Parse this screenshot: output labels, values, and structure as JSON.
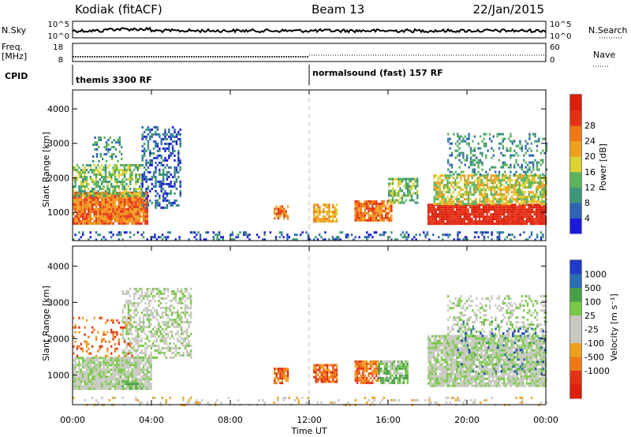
{
  "header": {
    "station": "Kodiak (fitACF)",
    "beam": "Beam 13",
    "date": "22/Jan/2015"
  },
  "panels": {
    "nsky": {
      "label": "N.Sky",
      "ticks": [
        "10^5",
        "10^0"
      ],
      "right_label": "N.Search",
      "right_ticks": [
        "10^5",
        "10^0"
      ]
    },
    "freq": {
      "label_line1": "Freq.",
      "label_line2": "[MHz]",
      "ticks": [
        "18",
        "8"
      ],
      "right_label": "Nave",
      "right_ticks": [
        "60",
        "0"
      ]
    },
    "cpid": {
      "label": "CPID",
      "modes": [
        {
          "name": "themis 3300 RF",
          "start_hour": 0
        },
        {
          "name": "normalsound (fast) 157 RF",
          "start_hour": 12
        }
      ]
    }
  },
  "chart_data": [
    {
      "type": "heatmap",
      "parameter": "Power",
      "ylabel": "Slant Range [km]",
      "ylim": [
        180,
        4550
      ],
      "yticks": [
        "1000",
        "2000",
        "3000",
        "4000"
      ],
      "colorbar_label": "Power [dB]",
      "colorbar_ticks": [
        "4",
        "8",
        "12",
        "16",
        "20",
        "24",
        "28"
      ],
      "colors": [
        "#1a1adc",
        "#2e64b4",
        "#3c9678",
        "#5ab45a",
        "#dcd232",
        "#f0a01e",
        "#f07814",
        "#e63214",
        "#dc1e0a"
      ],
      "blobs": [
        {
          "t0": 0.0,
          "t1": 3.8,
          "r0": 700,
          "r1": 1600,
          "level": 6,
          "density": 0.95
        },
        {
          "t0": 0.0,
          "t1": 3.5,
          "r0": 1500,
          "r1": 2400,
          "level": 3,
          "density": 0.6
        },
        {
          "t0": 1.0,
          "t1": 2.5,
          "r0": 2500,
          "r1": 3200,
          "level": 2,
          "density": 0.35
        },
        {
          "t0": 3.5,
          "t1": 5.5,
          "r0": 1100,
          "r1": 3500,
          "level": 1,
          "density": 0.45
        },
        {
          "t0": 10.2,
          "t1": 10.9,
          "r0": 800,
          "r1": 1200,
          "level": 6,
          "density": 0.8
        },
        {
          "t0": 12.2,
          "t1": 13.4,
          "r0": 750,
          "r1": 1250,
          "level": 5,
          "density": 0.8
        },
        {
          "t0": 14.3,
          "t1": 16.2,
          "r0": 800,
          "r1": 1350,
          "level": 6,
          "density": 0.85
        },
        {
          "t0": 16.0,
          "t1": 17.5,
          "r0": 1300,
          "r1": 2000,
          "level": 3,
          "density": 0.6
        },
        {
          "t0": 18.0,
          "t1": 24.0,
          "r0": 700,
          "r1": 1250,
          "level": 8,
          "density": 0.95
        },
        {
          "t0": 18.3,
          "t1": 24.0,
          "r0": 1250,
          "r1": 2100,
          "level": 4,
          "density": 0.7
        },
        {
          "t0": 19.0,
          "t1": 24.0,
          "r0": 2100,
          "r1": 3300,
          "level": 2,
          "density": 0.3
        },
        {
          "t0": 0.0,
          "t1": 24.0,
          "r0": 200,
          "r1": 450,
          "level": 1,
          "density": 0.25
        }
      ]
    },
    {
      "type": "heatmap",
      "parameter": "Velocity",
      "ylabel": "Slant Range [km]",
      "ylim": [
        180,
        4550
      ],
      "yticks": [
        "1000",
        "2000",
        "3000",
        "4000"
      ],
      "colorbar_label": "Velocity [m s⁻¹]",
      "colorbar_ticks": [
        "1000",
        "500",
        "100",
        "25",
        "-25",
        "-100",
        "-500",
        "-1000"
      ],
      "colors": [
        "#1e3cc8",
        "#286eb4",
        "#46a046",
        "#78c846",
        "#c8c8c0",
        "#c8c8c0",
        "#f0a01e",
        "#f07814",
        "#e63214",
        "#dc1e0a"
      ],
      "blobs": [
        {
          "t0": 0.0,
          "t1": 4.0,
          "r0": 600,
          "r1": 1500,
          "level": 4,
          "density": 0.9
        },
        {
          "t0": 2.5,
          "t1": 6.0,
          "r0": 1500,
          "r1": 3400,
          "level": 4,
          "density": 0.5
        },
        {
          "t0": 0.0,
          "t1": 3.0,
          "r0": 1500,
          "r1": 2600,
          "level": 7,
          "density": 0.2
        },
        {
          "t0": 2.5,
          "t1": 3.5,
          "r0": 650,
          "r1": 850,
          "level": 3,
          "density": 0.8
        },
        {
          "t0": 10.2,
          "t1": 10.9,
          "r0": 800,
          "r1": 1200,
          "level": 7,
          "density": 0.8
        },
        {
          "t0": 12.2,
          "t1": 13.4,
          "r0": 800,
          "r1": 1300,
          "level": 7,
          "density": 0.85
        },
        {
          "t0": 14.3,
          "t1": 15.5,
          "r0": 800,
          "r1": 1400,
          "level": 7,
          "density": 0.8
        },
        {
          "t0": 15.5,
          "t1": 17.0,
          "r0": 800,
          "r1": 1400,
          "level": 3,
          "density": 0.8
        },
        {
          "t0": 18.0,
          "t1": 24.0,
          "r0": 700,
          "r1": 2100,
          "level": 4,
          "density": 0.9
        },
        {
          "t0": 19.0,
          "t1": 24.0,
          "r0": 2100,
          "r1": 3200,
          "level": 4,
          "density": 0.3
        },
        {
          "t0": 19.5,
          "t1": 24.0,
          "r0": 1000,
          "r1": 2500,
          "level": 1,
          "density": 0.12
        },
        {
          "t0": 0.0,
          "t1": 24.0,
          "r0": 200,
          "r1": 400,
          "level": 5,
          "density": 0.15
        }
      ]
    }
  ],
  "xaxis": {
    "xlabel": "Time UT",
    "xlim": [
      0,
      24
    ],
    "tick_labels": [
      "00:00",
      "04:00",
      "08:00",
      "12:00",
      "16:00",
      "20:00",
      "00:00"
    ],
    "tick_values": [
      0,
      4,
      8,
      12,
      16,
      20,
      24
    ]
  }
}
